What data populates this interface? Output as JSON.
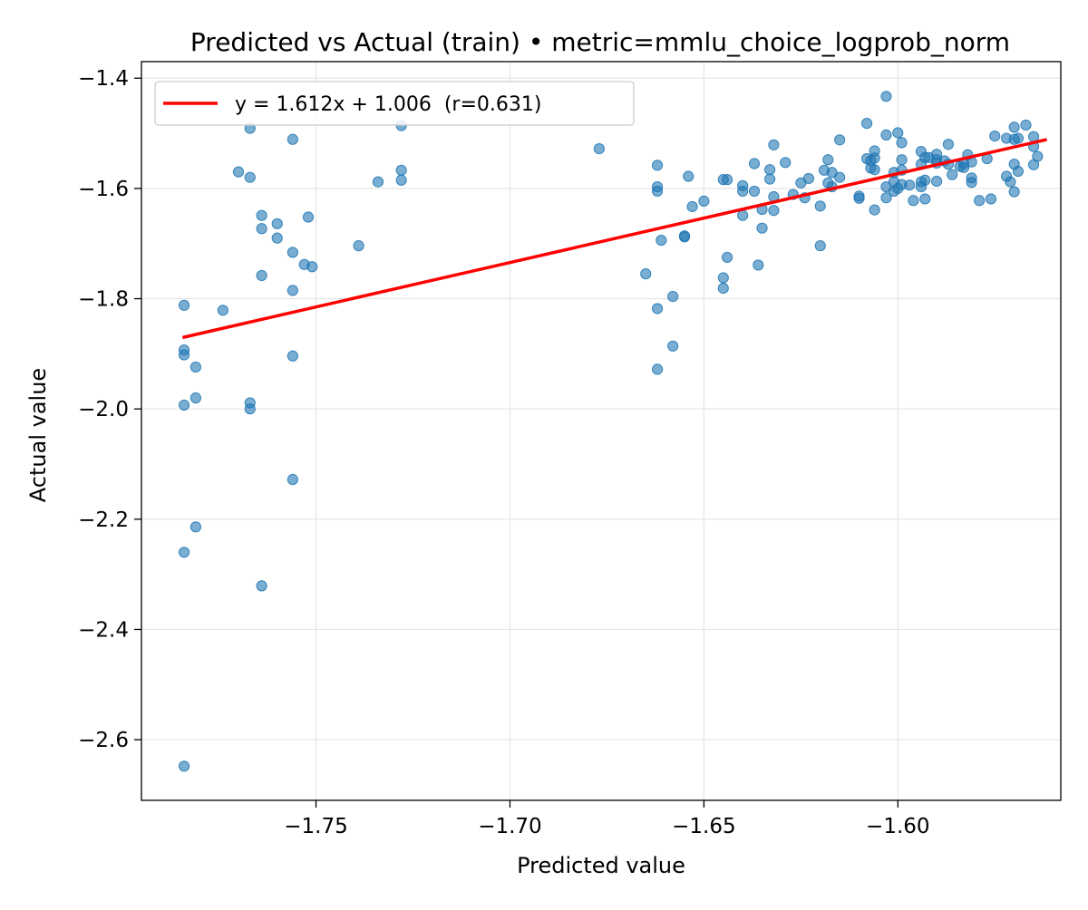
{
  "chart_data": {
    "type": "scatter",
    "title": "Predicted vs Actual (train) • metric=mmlu_choice_logprob_norm",
    "xlabel": "Predicted value",
    "ylabel": "Actual value",
    "xlim": [
      -1.795,
      -1.558
    ],
    "ylim": [
      -2.71,
      -1.37
    ],
    "xticks": [
      -1.75,
      -1.7,
      -1.65,
      -1.6
    ],
    "xtick_labels": [
      "−1.75",
      "−1.70",
      "−1.65",
      "−1.60"
    ],
    "yticks": [
      -2.6,
      -2.4,
      -2.2,
      -2.0,
      -1.8,
      -1.6,
      -1.4
    ],
    "ytick_labels": [
      "−2.6",
      "−2.4",
      "−2.2",
      "−2.0",
      "−1.8",
      "−1.6",
      "−1.4"
    ],
    "grid": true,
    "legend_position": "top-left",
    "colors": {
      "points": "#1f77b4",
      "fit_line": "#ff0000",
      "grid": "#e5e5e5",
      "axes": "#000000"
    },
    "series": [
      {
        "name": "train",
        "kind": "scatter",
        "points": [
          [
            -1.784,
            -1.812
          ],
          [
            -1.784,
            -1.893
          ],
          [
            -1.784,
            -1.902
          ],
          [
            -1.784,
            -1.993
          ],
          [
            -1.784,
            -2.26
          ],
          [
            -1.784,
            -2.648
          ],
          [
            -1.781,
            -1.924
          ],
          [
            -1.781,
            -1.98
          ],
          [
            -1.781,
            -2.214
          ],
          [
            -1.774,
            -1.821
          ],
          [
            -1.77,
            -1.57
          ],
          [
            -1.767,
            -1.491
          ],
          [
            -1.767,
            -1.58
          ],
          [
            -1.767,
            -1.989
          ],
          [
            -1.767,
            -2.0
          ],
          [
            -1.764,
            -1.649
          ],
          [
            -1.764,
            -1.673
          ],
          [
            -1.764,
            -1.758
          ],
          [
            -1.764,
            -2.321
          ],
          [
            -1.76,
            -1.664
          ],
          [
            -1.76,
            -1.69
          ],
          [
            -1.756,
            -1.511
          ],
          [
            -1.756,
            -1.716
          ],
          [
            -1.756,
            -1.785
          ],
          [
            -1.756,
            -1.904
          ],
          [
            -1.756,
            -2.128
          ],
          [
            -1.753,
            -1.738
          ],
          [
            -1.752,
            -1.652
          ],
          [
            -1.751,
            -1.742
          ],
          [
            -1.739,
            -1.704
          ],
          [
            -1.734,
            -1.588
          ],
          [
            -1.728,
            -1.486
          ],
          [
            -1.728,
            -1.567
          ],
          [
            -1.728,
            -1.585
          ],
          [
            -1.677,
            -1.528
          ],
          [
            -1.665,
            -1.755
          ],
          [
            -1.662,
            -1.558
          ],
          [
            -1.662,
            -1.597
          ],
          [
            -1.662,
            -1.605
          ],
          [
            -1.662,
            -1.818
          ],
          [
            -1.662,
            -1.928
          ],
          [
            -1.661,
            -1.694
          ],
          [
            -1.658,
            -1.796
          ],
          [
            -1.658,
            -1.886
          ],
          [
            -1.655,
            -1.686
          ],
          [
            -1.655,
            -1.688
          ],
          [
            -1.654,
            -1.578
          ],
          [
            -1.653,
            -1.633
          ],
          [
            -1.65,
            -1.623
          ],
          [
            -1.645,
            -1.584
          ],
          [
            -1.645,
            -1.762
          ],
          [
            -1.645,
            -1.781
          ],
          [
            -1.644,
            -1.584
          ],
          [
            -1.644,
            -1.725
          ],
          [
            -1.64,
            -1.595
          ],
          [
            -1.64,
            -1.605
          ],
          [
            -1.64,
            -1.649
          ],
          [
            -1.637,
            -1.605
          ],
          [
            -1.637,
            -1.555
          ],
          [
            -1.636,
            -1.739
          ],
          [
            -1.635,
            -1.638
          ],
          [
            -1.635,
            -1.672
          ],
          [
            -1.633,
            -1.566
          ],
          [
            -1.633,
            -1.583
          ],
          [
            -1.632,
            -1.521
          ],
          [
            -1.632,
            -1.615
          ],
          [
            -1.632,
            -1.64
          ],
          [
            -1.629,
            -1.553
          ],
          [
            -1.627,
            -1.611
          ],
          [
            -1.625,
            -1.59
          ],
          [
            -1.624,
            -1.617
          ],
          [
            -1.623,
            -1.582
          ],
          [
            -1.62,
            -1.632
          ],
          [
            -1.62,
            -1.704
          ],
          [
            -1.619,
            -1.567
          ],
          [
            -1.618,
            -1.548
          ],
          [
            -1.618,
            -1.59
          ],
          [
            -1.617,
            -1.571
          ],
          [
            -1.617,
            -1.597
          ],
          [
            -1.615,
            -1.512
          ],
          [
            -1.615,
            -1.58
          ],
          [
            -1.61,
            -1.614
          ],
          [
            -1.61,
            -1.618
          ],
          [
            -1.608,
            -1.482
          ],
          [
            -1.608,
            -1.546
          ],
          [
            -1.607,
            -1.563
          ],
          [
            -1.607,
            -1.55
          ],
          [
            -1.606,
            -1.532
          ],
          [
            -1.606,
            -1.545
          ],
          [
            -1.606,
            -1.566
          ],
          [
            -1.606,
            -1.639
          ],
          [
            -1.603,
            -1.433
          ],
          [
            -1.603,
            -1.503
          ],
          [
            -1.603,
            -1.597
          ],
          [
            -1.603,
            -1.617
          ],
          [
            -1.601,
            -1.571
          ],
          [
            -1.601,
            -1.588
          ],
          [
            -1.601,
            -1.605
          ],
          [
            -1.6,
            -1.499
          ],
          [
            -1.6,
            -1.6
          ],
          [
            -1.599,
            -1.517
          ],
          [
            -1.599,
            -1.548
          ],
          [
            -1.599,
            -1.567
          ],
          [
            -1.599,
            -1.593
          ],
          [
            -1.597,
            -1.594
          ],
          [
            -1.596,
            -1.622
          ],
          [
            -1.594,
            -1.533
          ],
          [
            -1.594,
            -1.556
          ],
          [
            -1.594,
            -1.588
          ],
          [
            -1.594,
            -1.597
          ],
          [
            -1.593,
            -1.544
          ],
          [
            -1.593,
            -1.585
          ],
          [
            -1.593,
            -1.619
          ],
          [
            -1.592,
            -1.544
          ],
          [
            -1.59,
            -1.538
          ],
          [
            -1.59,
            -1.548
          ],
          [
            -1.59,
            -1.554
          ],
          [
            -1.59,
            -1.587
          ],
          [
            -1.588,
            -1.55
          ],
          [
            -1.587,
            -1.52
          ],
          [
            -1.587,
            -1.556
          ],
          [
            -1.586,
            -1.575
          ],
          [
            -1.584,
            -1.56
          ],
          [
            -1.583,
            -1.555
          ],
          [
            -1.583,
            -1.562
          ],
          [
            -1.582,
            -1.539
          ],
          [
            -1.581,
            -1.552
          ],
          [
            -1.581,
            -1.581
          ],
          [
            -1.581,
            -1.589
          ],
          [
            -1.579,
            -1.622
          ],
          [
            -1.577,
            -1.546
          ],
          [
            -1.576,
            -1.619
          ],
          [
            -1.575,
            -1.505
          ],
          [
            -1.572,
            -1.509
          ],
          [
            -1.572,
            -1.578
          ],
          [
            -1.571,
            -1.588
          ],
          [
            -1.57,
            -1.489
          ],
          [
            -1.57,
            -1.511
          ],
          [
            -1.57,
            -1.556
          ],
          [
            -1.57,
            -1.606
          ],
          [
            -1.569,
            -1.509
          ],
          [
            -1.569,
            -1.569
          ],
          [
            -1.567,
            -1.485
          ],
          [
            -1.565,
            -1.506
          ],
          [
            -1.565,
            -1.524
          ],
          [
            -1.565,
            -1.557
          ],
          [
            -1.564,
            -1.542
          ]
        ]
      },
      {
        "name": "y = 1.612x + 1.006  (r=0.631)",
        "kind": "line",
        "slope": 1.612,
        "intercept": 1.006,
        "r": 0.631,
        "x": [
          -1.784,
          -1.562
        ]
      }
    ]
  },
  "legend": {
    "fit_label": "y = 1.612x + 1.006  (r=0.631)"
  }
}
